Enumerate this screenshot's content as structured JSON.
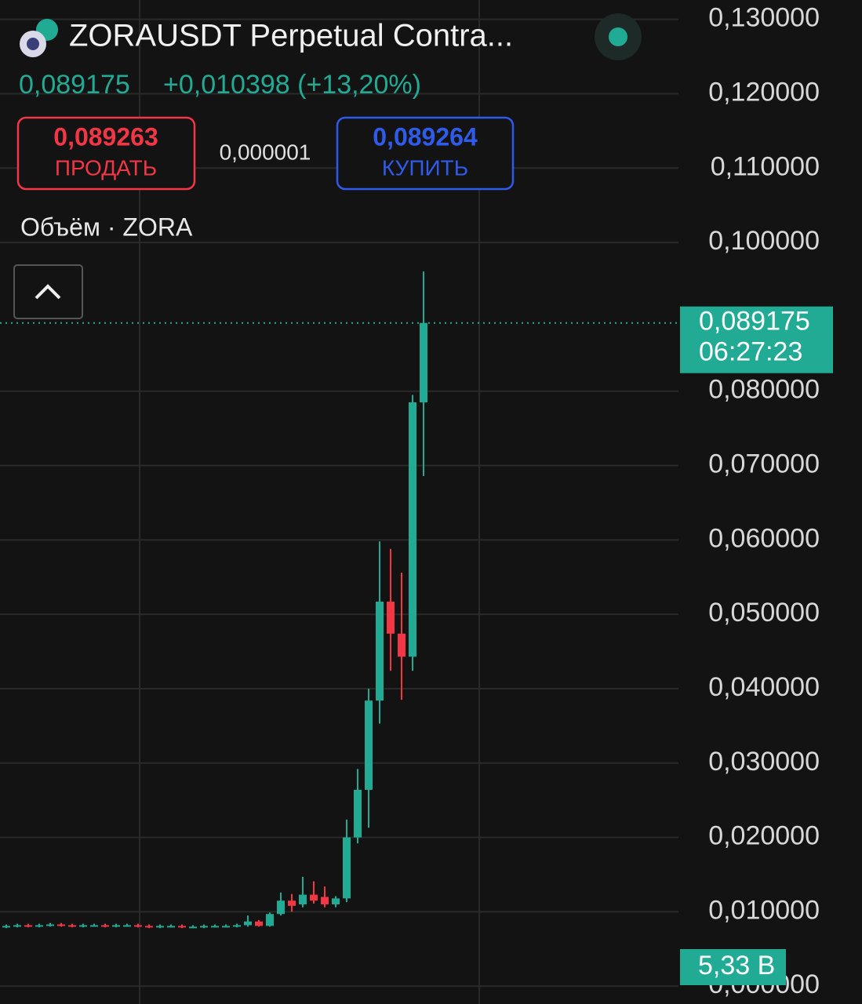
{
  "header": {
    "title": "ZORAUSDT Perpetual Contra...",
    "price": "0,089175",
    "change": "+0,010398 (+13,20%)",
    "sell_price": "0,089263",
    "sell_label": "ПРОДАТЬ",
    "spread": "0,000001",
    "buy_price": "0,089264",
    "buy_label": "КУПИТЬ",
    "volume_title": "Объём · ZORA"
  },
  "chart_data": {
    "type": "candlestick",
    "up_color": "#22ab94",
    "down_color": "#f23645",
    "grid": true,
    "ylim": [
      -0.0024,
      0.1326
    ],
    "yticks": [
      {
        "value": 0.13,
        "label": "0,130000"
      },
      {
        "value": 0.12,
        "label": "0,120000"
      },
      {
        "value": 0.11,
        "label": "0,110000"
      },
      {
        "value": 0.1,
        "label": "0,100000"
      },
      {
        "value": 0.08,
        "label": "0,080000"
      },
      {
        "value": 0.07,
        "label": "0,070000"
      },
      {
        "value": 0.06,
        "label": "0,060000"
      },
      {
        "value": 0.05,
        "label": "0,050000"
      },
      {
        "value": 0.04,
        "label": "0,040000"
      },
      {
        "value": 0.03,
        "label": "0,030000"
      },
      {
        "value": 0.02,
        "label": "0,020000"
      },
      {
        "value": 0.01,
        "label": "0,010000"
      },
      {
        "value": 0,
        "label": "0,000000"
      }
    ],
    "open": [
      0.008,
      0.0081,
      0.0082,
      0.0081,
      0.0082,
      0.0083,
      0.0082,
      0.0081,
      0.0082,
      0.0082,
      0.0081,
      0.0082,
      0.0082,
      0.0081,
      0.008,
      0.0081,
      0.0081,
      0.008,
      0.008,
      0.0081,
      0.0081,
      0.0081,
      0.0082,
      0.0087,
      0.0081,
      0.0097,
      0.0115,
      0.011,
      0.0123,
      0.012,
      0.011,
      0.0118,
      0.02,
      0.0264,
      0.0384,
      0.0517,
      0.0474,
      0.0443,
      0.0785
    ],
    "close": [
      0.0081,
      0.0082,
      0.0081,
      0.0082,
      0.0083,
      0.0082,
      0.0081,
      0.0082,
      0.0082,
      0.0081,
      0.0082,
      0.0082,
      0.0081,
      0.008,
      0.0081,
      0.0081,
      0.008,
      0.008,
      0.0081,
      0.0081,
      0.0081,
      0.0082,
      0.0087,
      0.0081,
      0.0097,
      0.0115,
      0.0108,
      0.0123,
      0.0115,
      0.011,
      0.0118,
      0.02,
      0.0264,
      0.0384,
      0.0517,
      0.0474,
      0.0443,
      0.0785,
      0.089175
    ],
    "high": [
      0.0083,
      0.0084,
      0.0084,
      0.0084,
      0.0085,
      0.0085,
      0.0084,
      0.0084,
      0.0084,
      0.0084,
      0.0084,
      0.0084,
      0.0084,
      0.0083,
      0.0083,
      0.0083,
      0.0083,
      0.0082,
      0.0083,
      0.0083,
      0.0083,
      0.0084,
      0.0095,
      0.0089,
      0.0099,
      0.0126,
      0.0124,
      0.0147,
      0.0141,
      0.0134,
      0.0121,
      0.0224,
      0.0292,
      0.04,
      0.0598,
      0.0588,
      0.0556,
      0.0795,
      0.0961
    ],
    "low": [
      0.0078,
      0.0079,
      0.0079,
      0.0079,
      0.008,
      0.008,
      0.0079,
      0.0079,
      0.008,
      0.0079,
      0.0079,
      0.008,
      0.0079,
      0.0078,
      0.0078,
      0.0079,
      0.0078,
      0.0078,
      0.0078,
      0.0079,
      0.0079,
      0.0079,
      0.008,
      0.008,
      0.008,
      0.0095,
      0.01,
      0.0106,
      0.0111,
      0.0106,
      0.0106,
      0.0113,
      0.0192,
      0.0213,
      0.0353,
      0.0424,
      0.0385,
      0.0424,
      0.0686
    ],
    "last_price": {
      "value": 0.089175,
      "label": "0,089175"
    },
    "countdown": "06:27:23",
    "volume_label": "5,33 B"
  }
}
